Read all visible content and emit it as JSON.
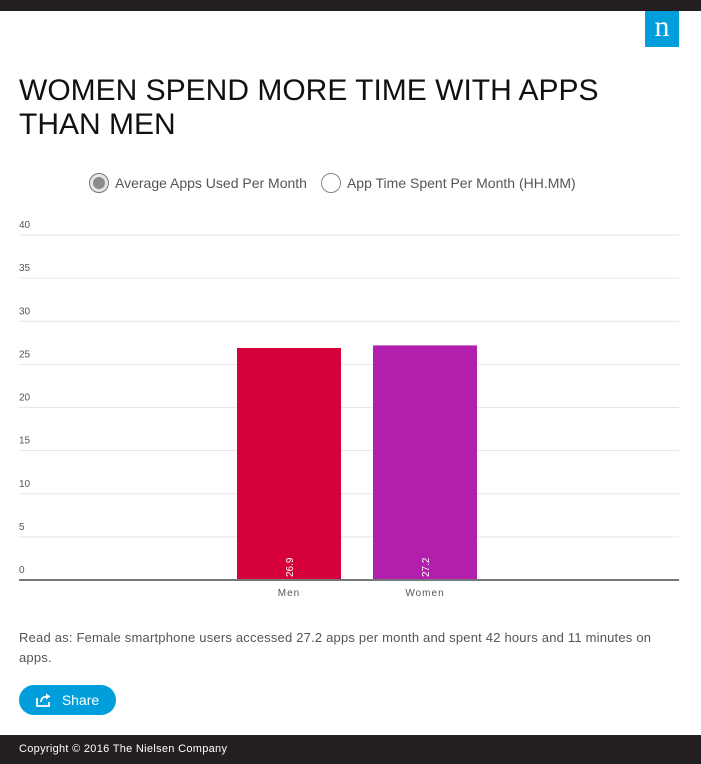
{
  "header": {
    "logo_text": "n",
    "title": "WOMEN SPEND MORE TIME WITH APPS THAN MEN"
  },
  "legend": {
    "options": [
      {
        "label": "Average Apps Used Per Month",
        "selected": true
      },
      {
        "label": "App Time Spent Per Month (HH.MM)",
        "selected": false
      }
    ]
  },
  "chart_data": {
    "type": "bar",
    "title": "Average Apps Used Per Month",
    "categories": [
      "Men",
      "Women"
    ],
    "values": [
      26.9,
      27.2
    ],
    "value_labels": [
      "26.9",
      "27.2"
    ],
    "colors": [
      "#d6003a",
      "#b21fac"
    ],
    "ylim": [
      0,
      40
    ],
    "yticks": [
      "0",
      "5",
      "10",
      "15",
      "20",
      "25",
      "30",
      "35",
      "40"
    ],
    "xlabel": "",
    "ylabel": "",
    "grid": true
  },
  "note": "Read as: Female smartphone users accessed 27.2 apps per month and spent 42 hours and 11 minutes on apps.",
  "share": {
    "label": "Share"
  },
  "footer": {
    "copyright": "Copyright © 2016 The Nielsen Company"
  }
}
